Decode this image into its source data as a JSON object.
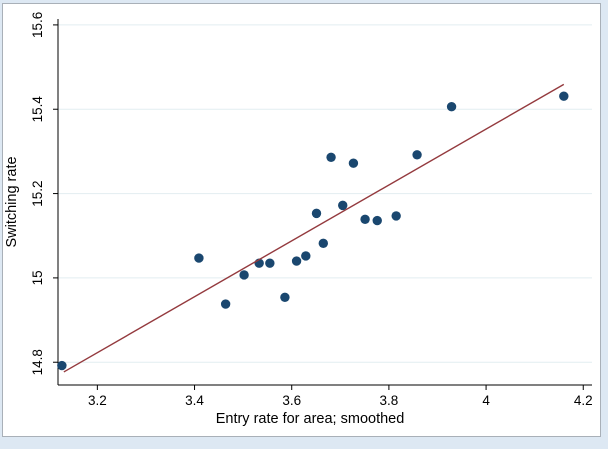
{
  "chart_data": {
    "type": "scatter",
    "title": "",
    "xlabel": "Entry rate for area; smoothed",
    "ylabel": "Switching rate",
    "xlim": [
      3.119,
      4.218
    ],
    "ylim": [
      14.746,
      15.614
    ],
    "x_ticks": [
      3.2,
      3.4,
      3.6,
      3.8,
      4.0,
      4.2
    ],
    "x_tick_labels": [
      "3.2",
      "3.4",
      "3.6",
      "3.8",
      "4",
      "4.2"
    ],
    "y_ticks": [
      14.8,
      15.0,
      15.2,
      15.4,
      15.6
    ],
    "y_tick_labels": [
      "14.8",
      "15",
      "15.2",
      "15.4",
      "15.6"
    ],
    "grid": true,
    "legend": "none",
    "points": [
      [
        3.127,
        14.792
      ],
      [
        3.409,
        15.047
      ],
      [
        3.464,
        14.938
      ],
      [
        3.502,
        15.007
      ],
      [
        3.533,
        15.035
      ],
      [
        3.555,
        15.035
      ],
      [
        3.586,
        14.954
      ],
      [
        3.61,
        15.04
      ],
      [
        3.629,
        15.052
      ],
      [
        3.651,
        15.153
      ],
      [
        3.665,
        15.082
      ],
      [
        3.681,
        15.286
      ],
      [
        3.705,
        15.172
      ],
      [
        3.727,
        15.272
      ],
      [
        3.751,
        15.139
      ],
      [
        3.776,
        15.136
      ],
      [
        3.815,
        15.147
      ],
      [
        3.858,
        15.292
      ],
      [
        3.929,
        15.406
      ],
      [
        4.16,
        15.431
      ]
    ],
    "fit_line": {
      "x1": 3.131,
      "y1": 14.777,
      "x2": 4.16,
      "y2": 15.459
    },
    "colors": {
      "marker": "#1a476f",
      "fit_line": "#943a3e",
      "grid": "#e2edf1",
      "axis": "#000000",
      "panel_bg": "#ffffff",
      "window_bg": "#dde8f3",
      "panel_border": "#a9b0b8"
    }
  }
}
